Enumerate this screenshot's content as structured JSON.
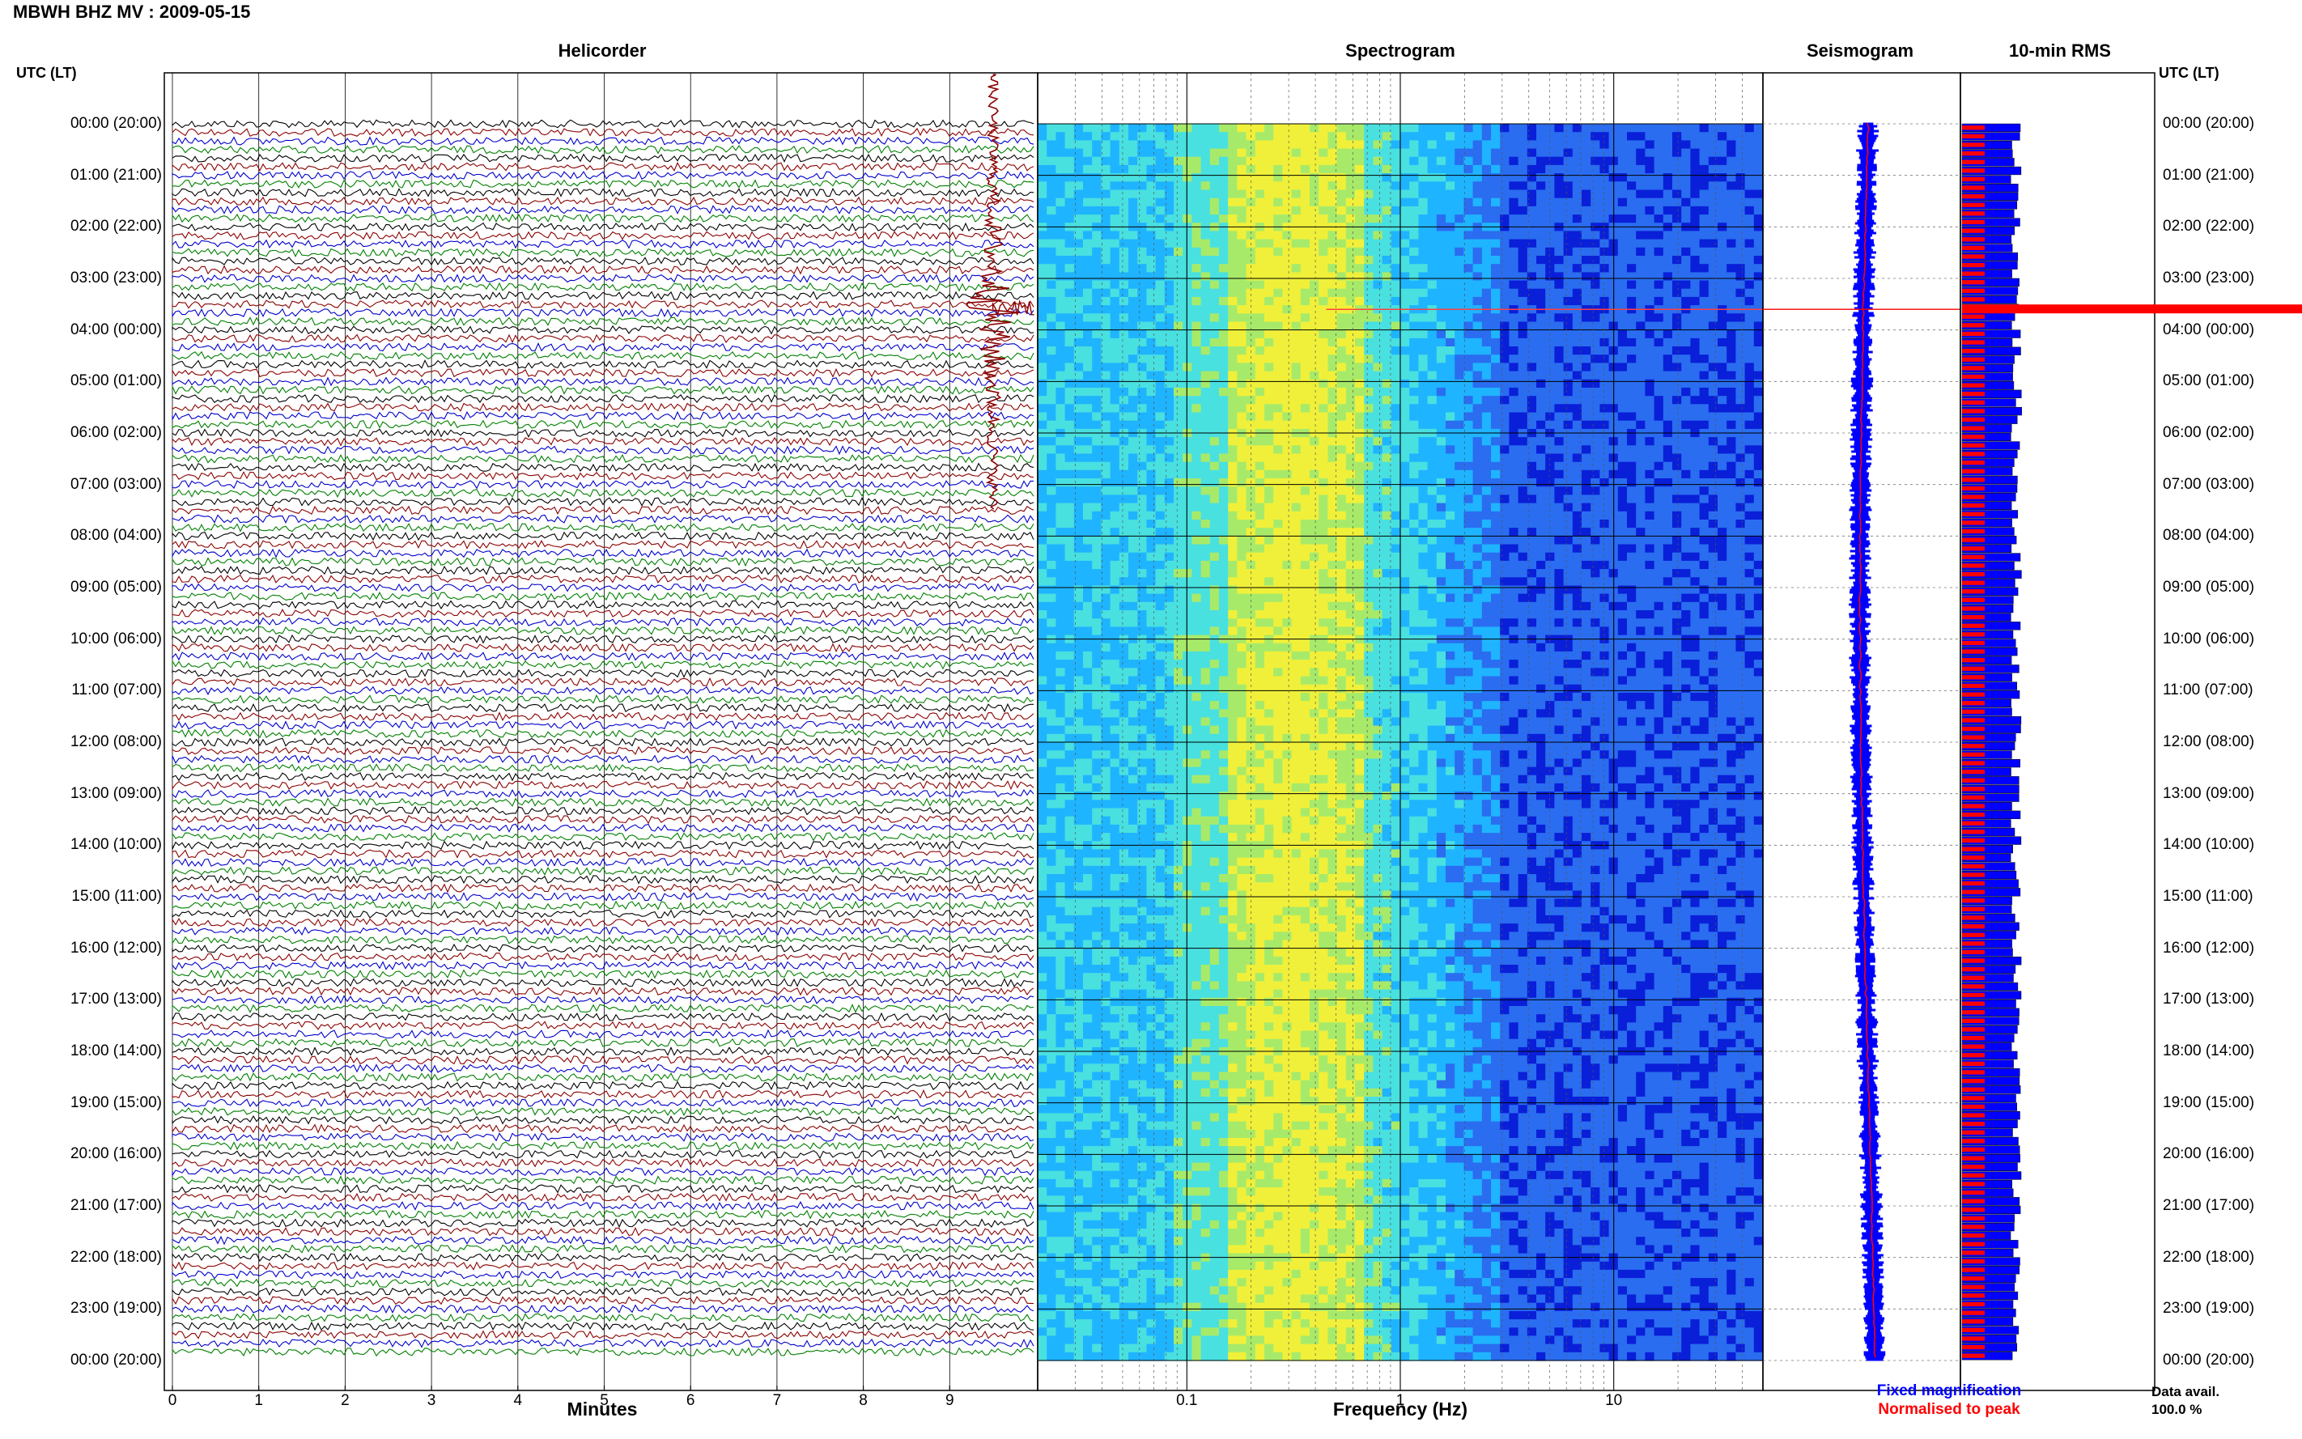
{
  "header": {
    "title": "MBWH BHZ MV : 2009-05-15",
    "left_axis_label": "UTC (LT)",
    "right_axis_label": "UTC (LT)"
  },
  "chart_data": [
    {
      "type": "line",
      "title": "Helicorder",
      "xlabel": "Minutes",
      "x_ticks": [
        "0",
        "1",
        "2",
        "3",
        "4",
        "5",
        "6",
        "7",
        "8",
        "9"
      ],
      "xlim": [
        0,
        10
      ],
      "rows_per_hour": 6,
      "row_colors": [
        "#000000",
        "#8b0000",
        "#0000cc",
        "#008000"
      ],
      "hour_labels": [
        "00:00 (20:00)",
        "01:00 (21:00)",
        "02:00 (22:00)",
        "03:00 (23:00)",
        "04:00 (00:00)",
        "05:00 (01:00)",
        "06:00 (02:00)",
        "07:00 (03:00)",
        "08:00 (04:00)",
        "09:00 (05:00)",
        "10:00 (06:00)",
        "11:00 (07:00)",
        "12:00 (08:00)",
        "13:00 (09:00)",
        "14:00 (10:00)",
        "15:00 (11:00)",
        "16:00 (12:00)",
        "17:00 (13:00)",
        "18:00 (14:00)",
        "19:00 (15:00)",
        "20:00 (16:00)",
        "21:00 (17:00)",
        "22:00 (18:00)",
        "23:00 (19:00)",
        "00:00 (20:00)"
      ],
      "event": {
        "hour": 3.6,
        "minute": 9.5
      }
    },
    {
      "type": "heatmap",
      "title": "Spectrogram",
      "xlabel": "Frequency (Hz)",
      "x_scale": "log",
      "xlim": [
        0.02,
        50
      ],
      "x_ticks": [
        "0.1",
        "1",
        "10"
      ],
      "colors": [
        "#0a1fd8",
        "#2a6df0",
        "#1fb4ff",
        "#49e0e0",
        "#a7ea6a",
        "#f0f03a"
      ]
    },
    {
      "type": "line",
      "title": "Seismogram",
      "legend": [
        "Fixed magnification",
        "Normalised to peak"
      ],
      "legend_colors": [
        "#0000ff",
        "#ff0000"
      ]
    },
    {
      "type": "bar",
      "title": "10-min RMS",
      "colors": [
        "#ff0000",
        "#0000ff"
      ],
      "event_hour": 3.6
    }
  ],
  "footer": {
    "data_avail_label": "Data avail.",
    "data_avail_value": "100.0 %"
  }
}
